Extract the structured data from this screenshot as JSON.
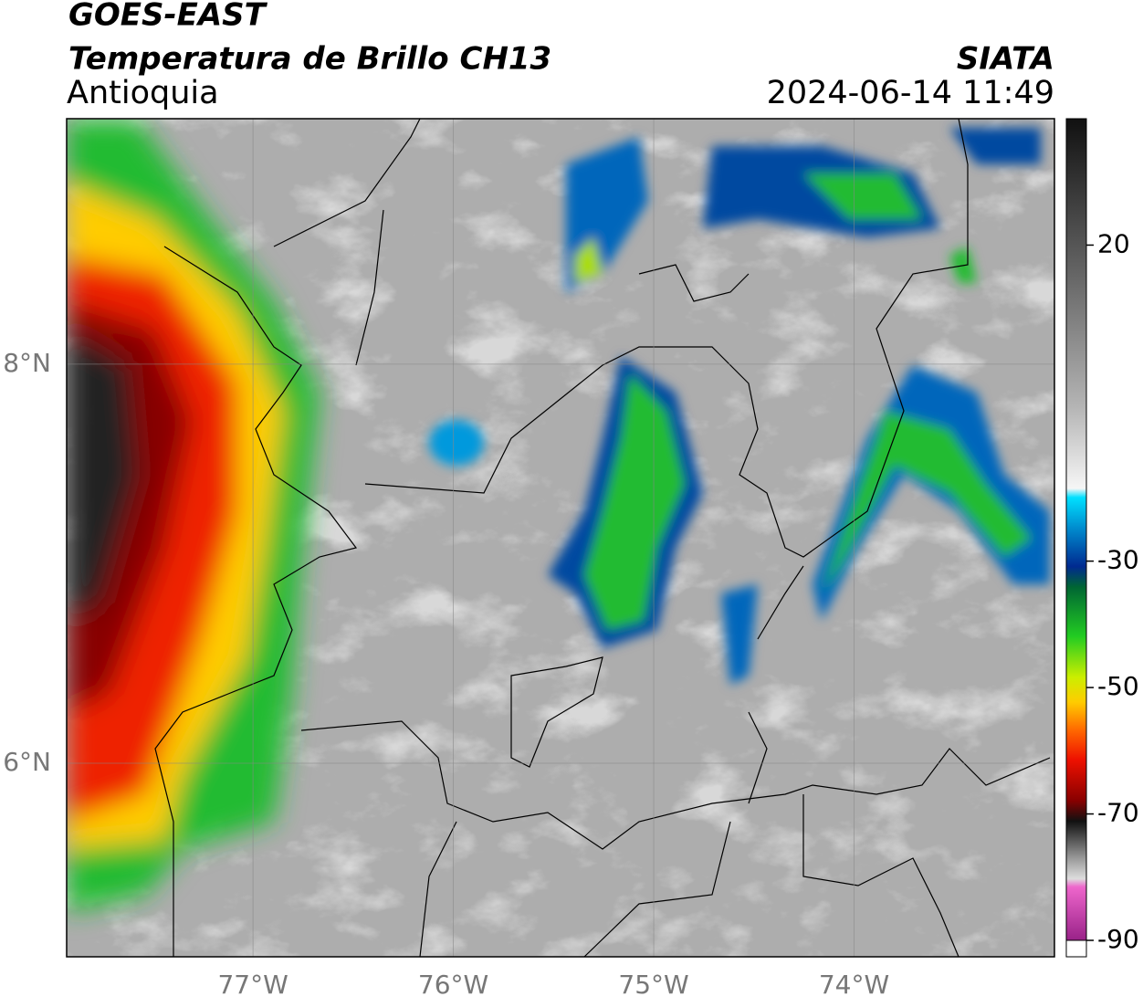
{
  "header": {
    "title": "GOES-EAST",
    "subtitle": "Temperatura de Brillo CH13",
    "region": "Antioquia",
    "source": "SIATA",
    "timestamp": "2024-06-14 11:49"
  },
  "map": {
    "lonlim": [
      -77.93,
      -73
    ],
    "latlim": [
      5.03,
      9.23
    ],
    "lonticks": [
      {
        "value": -77,
        "label": "77°W"
      },
      {
        "value": -76,
        "label": "76°W"
      },
      {
        "value": -75,
        "label": "75°W"
      },
      {
        "value": -74,
        "label": "74°W"
      }
    ],
    "latticks": [
      {
        "value": 8,
        "label": "8°N"
      },
      {
        "value": 6,
        "label": "6°N"
      }
    ]
  },
  "colorbar": {
    "clim": [
      -90,
      40
    ],
    "ticks": [
      20,
      -30,
      -50,
      -70,
      -90
    ]
  }
}
